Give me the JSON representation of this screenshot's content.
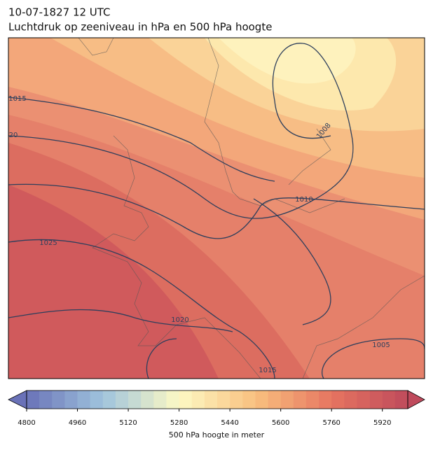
{
  "map": {
    "title": "10-07-1827 12 UTC",
    "subtitle": "Luchtdruk op zeeniveau in hPa en 500 hPa hoogte",
    "isobar_labels": [
      1015,
      "20",
      1025,
      1020,
      1010,
      1008,
      1005,
      1015
    ]
  },
  "colorbar": {
    "label": "500 hPa hoogte in meter",
    "lim": [
      4800,
      6000
    ],
    "ticks": [
      4800,
      4960,
      5120,
      5280,
      5440,
      5600,
      5760,
      5920
    ],
    "colors": [
      "#6a72b8",
      "#9fc4dd",
      "#fdf9c4",
      "#f9c07f",
      "#e67560",
      "#bf4a5c"
    ]
  }
}
